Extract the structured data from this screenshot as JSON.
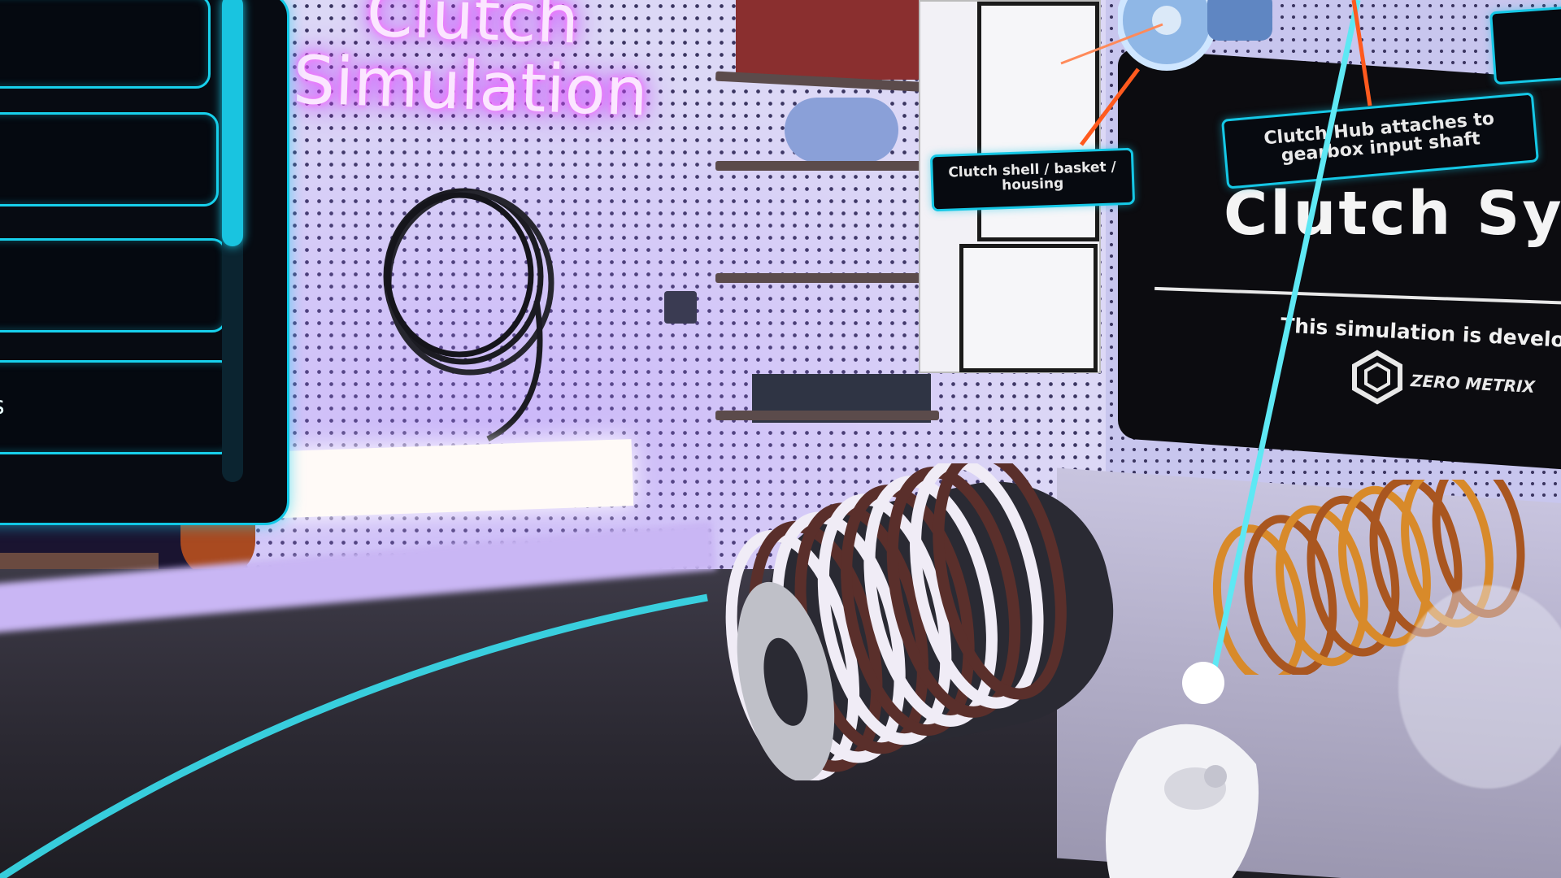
{
  "scene": {
    "neon_title": "Clutch\nSimulation"
  },
  "menu": {
    "items": [
      {
        "label": ""
      },
      {
        "label": ""
      },
      {
        "label": ""
      },
      {
        "label": "s"
      }
    ]
  },
  "callouts": {
    "housing": "Clutch shell / basket / housing",
    "hub": "Clutch Hub attaches to gearbox input shaft",
    "partial": ""
  },
  "info_board": {
    "title": "Clutch Sy",
    "subtitle": "This simulation is develop",
    "logo_text": "ZERO METRIX"
  },
  "colors": {
    "accent": "#15c8e6",
    "neon": "#d94bff",
    "pointer_ray": "#3ae0f0",
    "laser": "#ff5a1e"
  }
}
